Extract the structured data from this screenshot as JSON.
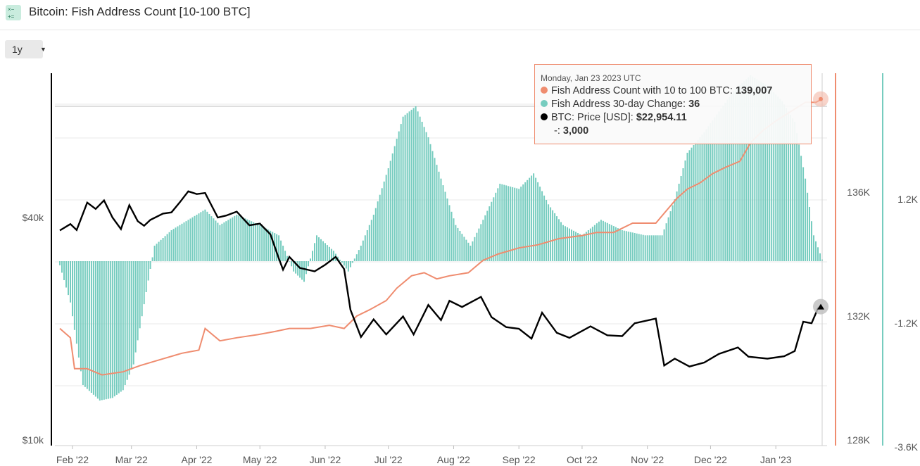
{
  "header": {
    "icon": "calculator-formula-icon",
    "title": "Bitcoin: Fish Address Count [10-100 BTC]"
  },
  "controls": {
    "range_label": "1y"
  },
  "tooltip": {
    "date": "Monday, Jan 23 2023 UTC",
    "rows": [
      {
        "label": "Fish Address Count with 10 to 100 BTC: ",
        "value": "139,007",
        "color": "#ef8c6f"
      },
      {
        "label": "Fish Address 30-day Change: ",
        "value": "36",
        "color": "#76ccbf"
      },
      {
        "label": "BTC: Price [USD]: ",
        "value": "$22,954.11",
        "color": "#000000"
      },
      {
        "label": "-: ",
        "value": "3,000",
        "color": ""
      }
    ]
  },
  "chart_data": {
    "type": "line",
    "title": "Bitcoin: Fish Address Count [10-100 BTC]",
    "x_tick_labels": [
      "Feb '22",
      "Mar '22",
      "Apr '22",
      "May '22",
      "Jun '22",
      "Jul '22",
      "Aug '22",
      "Sep '22",
      "Oct '22",
      "Nov '22",
      "Dec '22",
      "Jan '23"
    ],
    "x_range": [
      "2022-01-26",
      "2023-01-23"
    ],
    "y_left": {
      "scale": "log",
      "range": [
        10000,
        80000
      ],
      "tick_labels": [
        "$10k",
        "$40k"
      ]
    },
    "y_right1": {
      "range": [
        128000,
        140000
      ],
      "tick_labels": [
        "128K",
        "132K",
        "136K"
      ]
    },
    "y_right2": {
      "range": [
        -3600,
        3600
      ],
      "tick_labels": [
        "-3.6K",
        "-1.2K",
        "1.2K"
      ]
    },
    "series": [
      {
        "name": "Fish Address Count with 10 to 100 BTC",
        "color": "#ef8c6f",
        "axis": "right1",
        "points": [
          [
            "2022-01-26",
            131.6
          ],
          [
            "2022-01-31",
            131.3
          ],
          [
            "2022-02-02",
            130.3
          ],
          [
            "2022-02-08",
            130.3
          ],
          [
            "2022-02-15",
            130.1
          ],
          [
            "2022-02-25",
            130.2
          ],
          [
            "2022-03-05",
            130.4
          ],
          [
            "2022-03-15",
            130.6
          ],
          [
            "2022-03-25",
            130.8
          ],
          [
            "2022-04-02",
            130.9
          ],
          [
            "2022-04-05",
            131.6
          ],
          [
            "2022-04-12",
            131.2
          ],
          [
            "2022-04-20",
            131.3
          ],
          [
            "2022-04-30",
            131.4
          ],
          [
            "2022-05-08",
            131.5
          ],
          [
            "2022-05-15",
            131.6
          ],
          [
            "2022-05-25",
            131.6
          ],
          [
            "2022-06-03",
            131.7
          ],
          [
            "2022-06-10",
            131.6
          ],
          [
            "2022-06-16",
            132.0
          ],
          [
            "2022-06-22",
            132.2
          ],
          [
            "2022-06-30",
            132.5
          ],
          [
            "2022-07-05",
            132.9
          ],
          [
            "2022-07-12",
            133.3
          ],
          [
            "2022-07-18",
            133.4
          ],
          [
            "2022-07-24",
            133.2
          ],
          [
            "2022-07-30",
            133.3
          ],
          [
            "2022-08-08",
            133.4
          ],
          [
            "2022-08-15",
            133.8
          ],
          [
            "2022-08-22",
            134.0
          ],
          [
            "2022-09-01",
            134.2
          ],
          [
            "2022-09-10",
            134.3
          ],
          [
            "2022-09-20",
            134.5
          ],
          [
            "2022-10-01",
            134.6
          ],
          [
            "2022-10-08",
            134.7
          ],
          [
            "2022-10-16",
            134.7
          ],
          [
            "2022-10-25",
            135.0
          ],
          [
            "2022-10-31",
            135.0
          ],
          [
            "2022-11-05",
            135.0
          ],
          [
            "2022-11-10",
            135.4
          ],
          [
            "2022-11-15",
            135.8
          ],
          [
            "2022-11-20",
            136.1
          ],
          [
            "2022-11-26",
            136.3
          ],
          [
            "2022-12-02",
            136.6
          ],
          [
            "2022-12-08",
            136.8
          ],
          [
            "2022-12-15",
            137.0
          ],
          [
            "2022-12-20",
            137.6
          ],
          [
            "2022-12-26",
            138.0
          ],
          [
            "2023-01-01",
            138.3
          ],
          [
            "2023-01-08",
            138.6
          ],
          [
            "2023-01-15",
            138.9
          ],
          [
            "2023-01-20",
            138.9
          ],
          [
            "2023-01-23",
            139.007
          ]
        ]
      },
      {
        "name": "Fish Address 30-day Change",
        "color": "#76ccbf",
        "axis": "right2",
        "points": [
          [
            "2022-01-26",
            -80
          ],
          [
            "2022-01-31",
            -800
          ],
          [
            "2022-02-06",
            -2400
          ],
          [
            "2022-02-14",
            -2700
          ],
          [
            "2022-02-20",
            -2650
          ],
          [
            "2022-02-25",
            -2500
          ],
          [
            "2022-03-02",
            -2000
          ],
          [
            "2022-03-08",
            -600
          ],
          [
            "2022-03-12",
            300
          ],
          [
            "2022-03-20",
            600
          ],
          [
            "2022-03-28",
            800
          ],
          [
            "2022-04-05",
            1000
          ],
          [
            "2022-04-12",
            700
          ],
          [
            "2022-04-20",
            900
          ],
          [
            "2022-05-01",
            700
          ],
          [
            "2022-05-10",
            500
          ],
          [
            "2022-05-17",
            -200
          ],
          [
            "2022-05-22",
            -400
          ],
          [
            "2022-05-28",
            500
          ],
          [
            "2022-06-05",
            200
          ],
          [
            "2022-06-12",
            -200
          ],
          [
            "2022-06-18",
            300
          ],
          [
            "2022-06-24",
            900
          ],
          [
            "2022-07-01",
            1800
          ],
          [
            "2022-07-08",
            2800
          ],
          [
            "2022-07-14",
            3000
          ],
          [
            "2022-07-20",
            2400
          ],
          [
            "2022-07-26",
            1600
          ],
          [
            "2022-08-02",
            700
          ],
          [
            "2022-08-09",
            300
          ],
          [
            "2022-08-15",
            800
          ],
          [
            "2022-08-23",
            1500
          ],
          [
            "2022-09-01",
            1400
          ],
          [
            "2022-09-08",
            1700
          ],
          [
            "2022-09-15",
            1100
          ],
          [
            "2022-09-22",
            700
          ],
          [
            "2022-10-01",
            500
          ],
          [
            "2022-10-10",
            800
          ],
          [
            "2022-10-20",
            600
          ],
          [
            "2022-10-31",
            500
          ],
          [
            "2022-11-08",
            500
          ],
          [
            "2022-11-14",
            1200
          ],
          [
            "2022-11-20",
            2100
          ],
          [
            "2022-11-28",
            2500
          ],
          [
            "2022-12-05",
            2900
          ],
          [
            "2022-12-12",
            3300
          ],
          [
            "2022-12-20",
            3600
          ],
          [
            "2022-12-28",
            3400
          ],
          [
            "2023-01-04",
            3100
          ],
          [
            "2023-01-10",
            2700
          ],
          [
            "2023-01-15",
            1600
          ],
          [
            "2023-01-19",
            500
          ],
          [
            "2023-01-23",
            36
          ]
        ]
      },
      {
        "name": "BTC: Price [USD]",
        "color": "#000000",
        "axis": "left",
        "points": [
          [
            "2022-01-26",
            36900
          ],
          [
            "2022-01-31",
            38400
          ],
          [
            "2022-02-03",
            37000
          ],
          [
            "2022-02-08",
            43900
          ],
          [
            "2022-02-12",
            42200
          ],
          [
            "2022-02-16",
            44500
          ],
          [
            "2022-02-20",
            40000
          ],
          [
            "2022-02-24",
            37200
          ],
          [
            "2022-02-28",
            43200
          ],
          [
            "2022-03-04",
            39100
          ],
          [
            "2022-03-07",
            38000
          ],
          [
            "2022-03-10",
            39400
          ],
          [
            "2022-03-16",
            41000
          ],
          [
            "2022-03-20",
            41300
          ],
          [
            "2022-03-24",
            44000
          ],
          [
            "2022-03-28",
            47100
          ],
          [
            "2022-04-01",
            46300
          ],
          [
            "2022-04-05",
            46600
          ],
          [
            "2022-04-11",
            40000
          ],
          [
            "2022-04-15",
            40500
          ],
          [
            "2022-04-20",
            41500
          ],
          [
            "2022-04-26",
            38100
          ],
          [
            "2022-05-01",
            38500
          ],
          [
            "2022-05-06",
            36000
          ],
          [
            "2022-05-10",
            31000
          ],
          [
            "2022-05-12",
            28900
          ],
          [
            "2022-05-15",
            31300
          ],
          [
            "2022-05-20",
            29200
          ],
          [
            "2022-05-27",
            28600
          ],
          [
            "2022-06-01",
            29800
          ],
          [
            "2022-06-06",
            31300
          ],
          [
            "2022-06-10",
            29000
          ],
          [
            "2022-06-13",
            22500
          ],
          [
            "2022-06-18",
            19000
          ],
          [
            "2022-06-24",
            21200
          ],
          [
            "2022-06-30",
            19300
          ],
          [
            "2022-07-08",
            21600
          ],
          [
            "2022-07-13",
            19300
          ],
          [
            "2022-07-20",
            23200
          ],
          [
            "2022-07-26",
            21100
          ],
          [
            "2022-07-30",
            23800
          ],
          [
            "2022-08-05",
            22900
          ],
          [
            "2022-08-14",
            24400
          ],
          [
            "2022-08-19",
            21500
          ],
          [
            "2022-08-26",
            20200
          ],
          [
            "2022-09-01",
            20000
          ],
          [
            "2022-09-07",
            18800
          ],
          [
            "2022-09-12",
            22100
          ],
          [
            "2022-09-19",
            19500
          ],
          [
            "2022-09-25",
            18900
          ],
          [
            "2022-10-05",
            20300
          ],
          [
            "2022-10-13",
            19200
          ],
          [
            "2022-10-20",
            19100
          ],
          [
            "2022-10-26",
            20700
          ],
          [
            "2022-11-05",
            21300
          ],
          [
            "2022-11-09",
            15900
          ],
          [
            "2022-11-14",
            16600
          ],
          [
            "2022-11-21",
            15800
          ],
          [
            "2022-11-28",
            16200
          ],
          [
            "2022-12-05",
            17100
          ],
          [
            "2022-12-14",
            17800
          ],
          [
            "2022-12-19",
            16800
          ],
          [
            "2022-12-28",
            16600
          ],
          [
            "2023-01-05",
            16850
          ],
          [
            "2023-01-10",
            17400
          ],
          [
            "2023-01-14",
            20900
          ],
          [
            "2023-01-18",
            20700
          ],
          [
            "2023-01-21",
            22700
          ],
          [
            "2023-01-23",
            22954.11
          ]
        ]
      },
      {
        "name": "-",
        "color": "#555555",
        "axis": "right2",
        "points": [
          [
            "2022-01-26",
            3000
          ],
          [
            "2023-01-23",
            3000
          ]
        ]
      }
    ],
    "legend": "none",
    "grid": true
  }
}
